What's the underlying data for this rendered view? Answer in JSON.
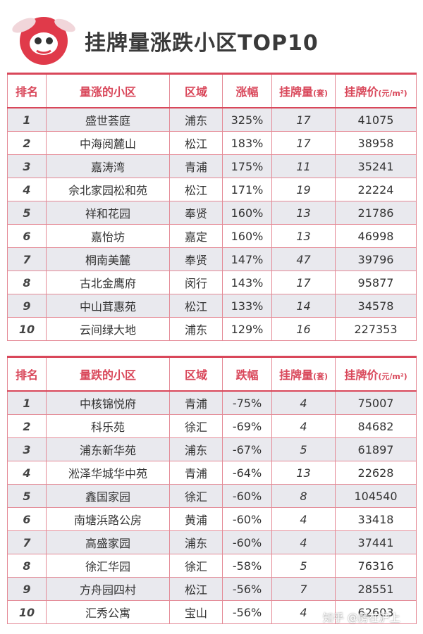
{
  "header": {
    "title": "挂牌量涨跌小区TOP10"
  },
  "tables": [
    {
      "columns": [
        "排名",
        "量涨的小区",
        "区域",
        "涨幅",
        {
          "main": "挂牌量",
          "unit": "(套)"
        },
        {
          "main": "挂牌价",
          "unit": "(元/m²)"
        }
      ],
      "rows": [
        [
          1,
          "盛世荟庭",
          "浦东",
          "325%",
          17,
          41075
        ],
        [
          2,
          "中海阅麓山",
          "松江",
          "183%",
          17,
          38958
        ],
        [
          3,
          "嘉涛湾",
          "青浦",
          "175%",
          11,
          35241
        ],
        [
          4,
          "佘北家园松和苑",
          "松江",
          "171%",
          19,
          22224
        ],
        [
          5,
          "祥和花园",
          "奉贤",
          "160%",
          13,
          21786
        ],
        [
          6,
          "嘉怡坊",
          "嘉定",
          "160%",
          13,
          46998
        ],
        [
          7,
          "桐南美麓",
          "奉贤",
          "147%",
          47,
          39796
        ],
        [
          8,
          "古北金鹰府",
          "闵行",
          "143%",
          17,
          95877
        ],
        [
          9,
          "中山茸惠苑",
          "松江",
          "133%",
          14,
          34578
        ],
        [
          10,
          "云间绿大地",
          "浦东",
          "129%",
          16,
          227353
        ]
      ]
    },
    {
      "columns": [
        "排名",
        "量跌的小区",
        "区域",
        "跌幅",
        {
          "main": "挂牌量",
          "unit": "(套)"
        },
        {
          "main": "挂牌价",
          "unit": "(元/m²)"
        }
      ],
      "rows": [
        [
          1,
          "中核锦悦府",
          "青浦",
          "-75%",
          4,
          75007
        ],
        [
          2,
          "科乐苑",
          "徐汇",
          "-69%",
          4,
          84682
        ],
        [
          3,
          "浦东新华苑",
          "浦东",
          "-67%",
          5,
          61897
        ],
        [
          4,
          "淞泽华城华中苑",
          "青浦",
          "-64%",
          13,
          22628
        ],
        [
          5,
          "鑫国家园",
          "徐汇",
          "-60%",
          8,
          104540
        ],
        [
          6,
          "南塘浜路公房",
          "黄浦",
          "-60%",
          4,
          33418
        ],
        [
          7,
          "高盛家园",
          "浦东",
          "-60%",
          4,
          37441
        ],
        [
          8,
          "徐汇华园",
          "徐汇",
          "-58%",
          5,
          76316
        ],
        [
          9,
          "方舟园四村",
          "松江",
          "-56%",
          7,
          28551
        ],
        [
          10,
          "汇秀公寓",
          "宝山",
          "-56%",
          4,
          62603
        ]
      ]
    }
  ],
  "watermark": "知乎 @房在沪上"
}
